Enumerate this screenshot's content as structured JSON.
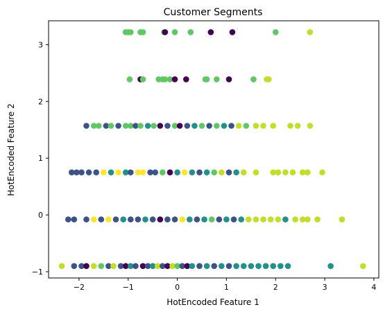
{
  "chart_data": {
    "type": "scatter",
    "title": "Customer Segments",
    "xlabel": "HotEncoded Feature 1",
    "ylabel": "HotEncoded Feature 2",
    "xlim": [
      -2.62,
      4.1
    ],
    "ylim": [
      -1.11,
      3.42
    ],
    "xticks": [
      -2,
      -1,
      0,
      1,
      2,
      3,
      4
    ],
    "yticks": [
      -1,
      0,
      1,
      2,
      3
    ],
    "colors": {
      "c0": "#440154",
      "c1": "#3b528b",
      "c2": "#21918c",
      "c3": "#5ec962",
      "c4": "#c2df23",
      "c5": "#fde725"
    },
    "rows": [
      {
        "y": 3.22,
        "points": [
          [
            -1.05,
            "c3"
          ],
          [
            -1.0,
            "c3"
          ],
          [
            -0.95,
            "c3"
          ],
          [
            -0.75,
            "c3"
          ],
          [
            -0.7,
            "c3"
          ],
          [
            -0.27,
            "c3"
          ],
          [
            -0.25,
            "c0"
          ],
          [
            -0.05,
            "c3"
          ],
          [
            0.27,
            "c3"
          ],
          [
            0.68,
            "c0"
          ],
          [
            1.12,
            "c0"
          ],
          [
            2.0,
            "c3"
          ],
          [
            2.7,
            "c4"
          ]
        ]
      },
      {
        "y": 2.39,
        "points": [
          [
            -0.97,
            "c3"
          ],
          [
            -0.75,
            "c0"
          ],
          [
            -0.7,
            "c3"
          ],
          [
            -0.38,
            "c3"
          ],
          [
            -0.3,
            "c3"
          ],
          [
            -0.25,
            "c3"
          ],
          [
            -0.15,
            "c3"
          ],
          [
            -0.05,
            "c0"
          ],
          [
            0.18,
            "c0"
          ],
          [
            0.57,
            "c3"
          ],
          [
            0.6,
            "c3"
          ],
          [
            0.8,
            "c3"
          ],
          [
            1.05,
            "c0"
          ],
          [
            1.55,
            "c3"
          ],
          [
            1.82,
            "c4"
          ],
          [
            1.86,
            "c4"
          ]
        ]
      },
      {
        "y": 1.57,
        "points": [
          [
            -1.85,
            "c1"
          ],
          [
            -1.7,
            "c3"
          ],
          [
            -1.6,
            "c3"
          ],
          [
            -1.45,
            "c1"
          ],
          [
            -1.35,
            "c3"
          ],
          [
            -1.2,
            "c1"
          ],
          [
            -1.05,
            "c3"
          ],
          [
            -0.95,
            "c3"
          ],
          [
            -0.85,
            "c1"
          ],
          [
            -0.75,
            "c3"
          ],
          [
            -0.6,
            "c2"
          ],
          [
            -0.48,
            "c3"
          ],
          [
            -0.35,
            "c0"
          ],
          [
            -0.2,
            "c1"
          ],
          [
            -0.05,
            "c3"
          ],
          [
            0.05,
            "c0"
          ],
          [
            0.2,
            "c1"
          ],
          [
            0.35,
            "c2"
          ],
          [
            0.5,
            "c3"
          ],
          [
            0.65,
            "c1"
          ],
          [
            0.8,
            "c3"
          ],
          [
            0.95,
            "c2"
          ],
          [
            1.1,
            "c1"
          ],
          [
            1.25,
            "c4"
          ],
          [
            1.4,
            "c3"
          ],
          [
            1.6,
            "c4"
          ],
          [
            1.75,
            "c4"
          ],
          [
            1.95,
            "c4"
          ],
          [
            2.3,
            "c4"
          ],
          [
            2.45,
            "c4"
          ],
          [
            2.7,
            "c4"
          ]
        ]
      },
      {
        "y": 0.75,
        "points": [
          [
            -2.15,
            "c1"
          ],
          [
            -2.05,
            "c1"
          ],
          [
            -1.95,
            "c1"
          ],
          [
            -1.8,
            "c1"
          ],
          [
            -1.65,
            "c1"
          ],
          [
            -1.5,
            "c5"
          ],
          [
            -1.35,
            "c2"
          ],
          [
            -1.2,
            "c5"
          ],
          [
            -1.05,
            "c2"
          ],
          [
            -0.95,
            "c1"
          ],
          [
            -0.8,
            "c5"
          ],
          [
            -0.7,
            "c5"
          ],
          [
            -0.55,
            "c1"
          ],
          [
            -0.45,
            "c1"
          ],
          [
            -0.3,
            "c3"
          ],
          [
            -0.15,
            "c0"
          ],
          [
            0.0,
            "c2"
          ],
          [
            0.15,
            "c5"
          ],
          [
            0.3,
            "c2"
          ],
          [
            0.45,
            "c1"
          ],
          [
            0.6,
            "c2"
          ],
          [
            0.75,
            "c3"
          ],
          [
            0.9,
            "c4"
          ],
          [
            1.05,
            "c1"
          ],
          [
            1.2,
            "c2"
          ],
          [
            1.35,
            "c4"
          ],
          [
            1.6,
            "c4"
          ],
          [
            1.95,
            "c4"
          ],
          [
            2.05,
            "c4"
          ],
          [
            2.2,
            "c4"
          ],
          [
            2.35,
            "c4"
          ],
          [
            2.55,
            "c4"
          ],
          [
            2.65,
            "c4"
          ],
          [
            2.95,
            "c4"
          ]
        ]
      },
      {
        "y": -0.08,
        "points": [
          [
            -2.22,
            "c1"
          ],
          [
            -2.1,
            "c1"
          ],
          [
            -1.85,
            "c1"
          ],
          [
            -1.7,
            "c5"
          ],
          [
            -1.55,
            "c1"
          ],
          [
            -1.4,
            "c5"
          ],
          [
            -1.25,
            "c1"
          ],
          [
            -1.1,
            "c2"
          ],
          [
            -0.95,
            "c1"
          ],
          [
            -0.8,
            "c1"
          ],
          [
            -0.65,
            "c2"
          ],
          [
            -0.5,
            "c1"
          ],
          [
            -0.35,
            "c0"
          ],
          [
            -0.2,
            "c1"
          ],
          [
            -0.05,
            "c1"
          ],
          [
            0.1,
            "c5"
          ],
          [
            0.25,
            "c2"
          ],
          [
            0.4,
            "c1"
          ],
          [
            0.55,
            "c2"
          ],
          [
            0.7,
            "c3"
          ],
          [
            0.85,
            "c1"
          ],
          [
            1.0,
            "c2"
          ],
          [
            1.15,
            "c1"
          ],
          [
            1.3,
            "c2"
          ],
          [
            1.45,
            "c4"
          ],
          [
            1.6,
            "c4"
          ],
          [
            1.75,
            "c4"
          ],
          [
            1.9,
            "c4"
          ],
          [
            2.05,
            "c4"
          ],
          [
            2.2,
            "c2"
          ],
          [
            2.4,
            "c4"
          ],
          [
            2.55,
            "c4"
          ],
          [
            2.65,
            "c4"
          ],
          [
            2.85,
            "c4"
          ],
          [
            3.35,
            "c4"
          ]
        ]
      },
      {
        "y": -0.9,
        "points": [
          [
            -2.35,
            "c4"
          ],
          [
            -2.1,
            "c1"
          ],
          [
            -1.95,
            "c1"
          ],
          [
            -1.85,
            "c0"
          ],
          [
            -1.7,
            "c4"
          ],
          [
            -1.55,
            "c3"
          ],
          [
            -1.4,
            "c1"
          ],
          [
            -1.3,
            "c4"
          ],
          [
            -1.15,
            "c1"
          ],
          [
            -1.05,
            "c0"
          ],
          [
            -0.95,
            "c2"
          ],
          [
            -0.85,
            "c1"
          ],
          [
            -0.7,
            "c0"
          ],
          [
            -0.6,
            "c1"
          ],
          [
            -0.5,
            "c2"
          ],
          [
            -0.4,
            "c4"
          ],
          [
            -0.3,
            "c1"
          ],
          [
            -0.2,
            "c0"
          ],
          [
            -0.1,
            "c4"
          ],
          [
            0.0,
            "c3"
          ],
          [
            0.1,
            "c1"
          ],
          [
            0.2,
            "c0"
          ],
          [
            0.3,
            "c2"
          ],
          [
            0.45,
            "c1"
          ],
          [
            0.6,
            "c2"
          ],
          [
            0.75,
            "c1"
          ],
          [
            0.9,
            "c2"
          ],
          [
            1.05,
            "c1"
          ],
          [
            1.2,
            "c2"
          ],
          [
            1.35,
            "c2"
          ],
          [
            1.5,
            "c2"
          ],
          [
            1.65,
            "c2"
          ],
          [
            1.8,
            "c2"
          ],
          [
            1.95,
            "c2"
          ],
          [
            2.1,
            "c2"
          ],
          [
            2.25,
            "c2"
          ],
          [
            3.12,
            "c2"
          ],
          [
            3.78,
            "c4"
          ]
        ]
      }
    ]
  }
}
